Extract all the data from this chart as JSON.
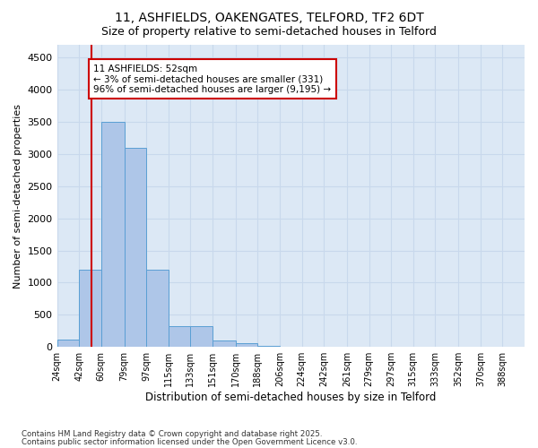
{
  "title1": "11, ASHFIELDS, OAKENGATES, TELFORD, TF2 6DT",
  "title2": "Size of property relative to semi-detached houses in Telford",
  "xlabel": "Distribution of semi-detached houses by size in Telford",
  "ylabel": "Number of semi-detached properties",
  "bins": [
    "24sqm",
    "42sqm",
    "60sqm",
    "79sqm",
    "97sqm",
    "115sqm",
    "133sqm",
    "151sqm",
    "170sqm",
    "188sqm",
    "206sqm",
    "224sqm",
    "242sqm",
    "261sqm",
    "279sqm",
    "297sqm",
    "315sqm",
    "333sqm",
    "352sqm",
    "370sqm",
    "388sqm"
  ],
  "bin_edges": [
    24,
    42,
    60,
    79,
    97,
    115,
    133,
    151,
    170,
    188,
    206,
    224,
    242,
    261,
    279,
    297,
    315,
    333,
    352,
    370,
    388
  ],
  "bar_heights": [
    110,
    1200,
    3500,
    3100,
    1200,
    330,
    330,
    100,
    60,
    20,
    5,
    2,
    1,
    0,
    0,
    0,
    0,
    0,
    0,
    0
  ],
  "bar_color": "#aec6e8",
  "bar_edge_color": "#5a9fd4",
  "property_size": 52,
  "property_label": "11 ASHFIELDS: 52sqm",
  "pct_smaller": 3,
  "pct_larger": 96,
  "n_smaller": 331,
  "n_larger": 9195,
  "red_line_color": "#cc0000",
  "annotation_box_color": "#ffffff",
  "annotation_box_edge": "#cc0000",
  "ylim": [
    0,
    4700
  ],
  "yticks": [
    0,
    500,
    1000,
    1500,
    2000,
    2500,
    3000,
    3500,
    4000,
    4500
  ],
  "grid_color": "#c8d8ec",
  "bg_color": "#dce8f5",
  "footer1": "Contains HM Land Registry data © Crown copyright and database right 2025.",
  "footer2": "Contains public sector information licensed under the Open Government Licence v3.0."
}
